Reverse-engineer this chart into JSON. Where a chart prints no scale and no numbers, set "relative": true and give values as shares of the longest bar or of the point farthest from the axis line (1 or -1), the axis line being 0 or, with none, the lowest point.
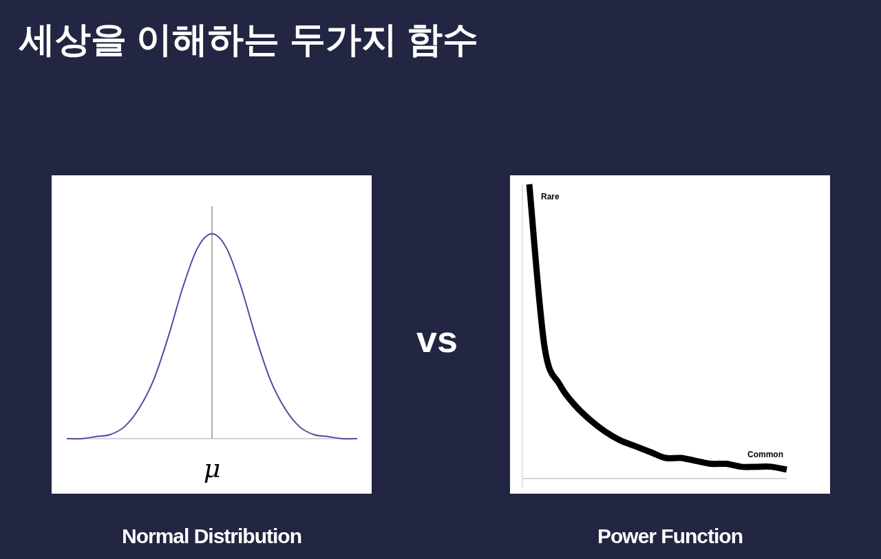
{
  "chart_data": [
    {
      "type": "other",
      "title": "세상을 이해하는 두가지 함수",
      "annotations": [
        "vs"
      ]
    },
    {
      "type": "line",
      "relative": true,
      "xlabel": "Normal Distribution",
      "categories": [
        null,
        null,
        null,
        null,
        null,
        null,
        null,
        null,
        null,
        null,
        null,
        null,
        null,
        null,
        null,
        null,
        null,
        null,
        null,
        null,
        null
      ],
      "series": [
        {
          "color": "#4b4ba0",
          "values": [
            0,
            0,
            0.01,
            0.02,
            0.06,
            0.15,
            0.29,
            0.5,
            0.74,
            0.93,
            1,
            0.93,
            0.74,
            0.5,
            0.29,
            0.15,
            0.06,
            0.02,
            0.01,
            0,
            0
          ]
        }
      ],
      "annotations": [
        "μ"
      ]
    },
    {
      "type": "line",
      "relative": true,
      "xlabel": "Power Function",
      "annotations": [
        "Rare",
        "Common"
      ],
      "categories": [
        null,
        null,
        null,
        null,
        null,
        null,
        null,
        null,
        null,
        null,
        null,
        null,
        null,
        null,
        null,
        null,
        null,
        null
      ],
      "series": [
        {
          "color": "#000000",
          "values": [
            1,
            0.45,
            0.32,
            0.25,
            0.2,
            0.16,
            0.13,
            0.11,
            0.09,
            0.07,
            0.07,
            0.06,
            0.05,
            0.05,
            0.04,
            0.04,
            0.04,
            0.03
          ]
        }
      ]
    }
  ]
}
